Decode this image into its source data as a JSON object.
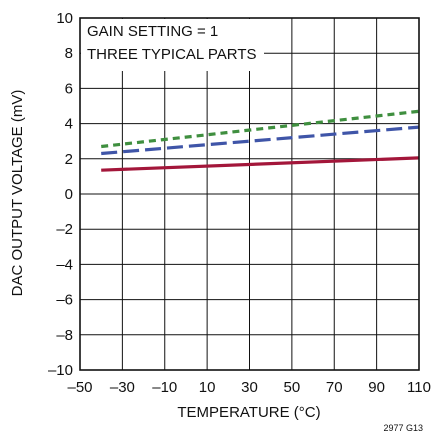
{
  "chart_data": {
    "type": "line",
    "xlabel": "TEMPERATURE (°C)",
    "ylabel": "DAC OUTPUT VOLTAGE (mV)",
    "xlim": [
      -50,
      110
    ],
    "ylim": [
      -10,
      10
    ],
    "xticks": [
      "–50",
      "–30",
      "–10",
      "10",
      "30",
      "50",
      "70",
      "90",
      "110"
    ],
    "yticks": [
      "10",
      "8",
      "6",
      "4",
      "2",
      "0",
      "–2",
      "–4",
      "–6",
      "–8",
      "–10"
    ],
    "grid": true,
    "annotations": [
      "GAIN SETTING = 1",
      "THREE TYPICAL PARTS"
    ],
    "figure_code": "2977 G13",
    "series": [
      {
        "x": [
          -40,
          110
        ],
        "y": [
          2.7,
          4.7
        ],
        "color": "#3f8f3f",
        "dash": "dense"
      },
      {
        "x": [
          -40,
          110
        ],
        "y": [
          2.3,
          3.8
        ],
        "color": "#3f55a8",
        "dash": "long"
      },
      {
        "x": [
          -40,
          110
        ],
        "y": [
          1.35,
          2.05
        ],
        "color": "#a3163a",
        "dash": "solid"
      }
    ]
  }
}
